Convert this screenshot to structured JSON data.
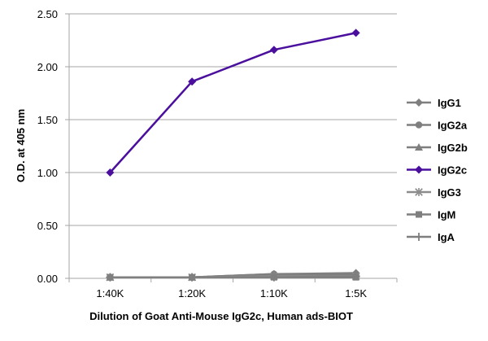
{
  "chart_data": {
    "type": "line",
    "title": "",
    "xlabel": "Dilution of Goat Anti-Mouse IgG2c, Human ads-BIOT",
    "ylabel": "O.D. at 405 nm",
    "categories": [
      "1:40K",
      "1:20K",
      "1:10K",
      "1:5K"
    ],
    "ylim": [
      0,
      2.5
    ],
    "yticks": [
      "0.00",
      "0.50",
      "1.00",
      "1.50",
      "2.00",
      "2.50"
    ],
    "grid": true,
    "legend": "right",
    "series": [
      {
        "name": "IgG1",
        "color": "#7f7f7f",
        "marker": "diamond",
        "values": [
          0.01,
          0.01,
          0.04,
          0.05
        ]
      },
      {
        "name": "IgG2a",
        "color": "#7f7f7f",
        "marker": "circle",
        "values": [
          0.01,
          0.01,
          0.04,
          0.04
        ]
      },
      {
        "name": "IgG2b",
        "color": "#7f7f7f",
        "marker": "triangle",
        "values": [
          0.01,
          0.01,
          0.03,
          0.04
        ]
      },
      {
        "name": "IgG2c",
        "color": "#4b0f9e",
        "marker": "diamond",
        "values": [
          1.0,
          1.86,
          2.16,
          2.32
        ]
      },
      {
        "name": "IgG3",
        "color": "#8c8c8c",
        "marker": "star",
        "values": [
          0.01,
          0.01,
          0.02,
          0.02
        ]
      },
      {
        "name": "IgM",
        "color": "#7f7f7f",
        "marker": "square",
        "values": [
          0.01,
          0.01,
          0.01,
          0.01
        ]
      },
      {
        "name": "IgA",
        "color": "#7f7f7f",
        "marker": "plus",
        "values": [
          0.01,
          0.01,
          0.01,
          0.02
        ]
      }
    ]
  }
}
